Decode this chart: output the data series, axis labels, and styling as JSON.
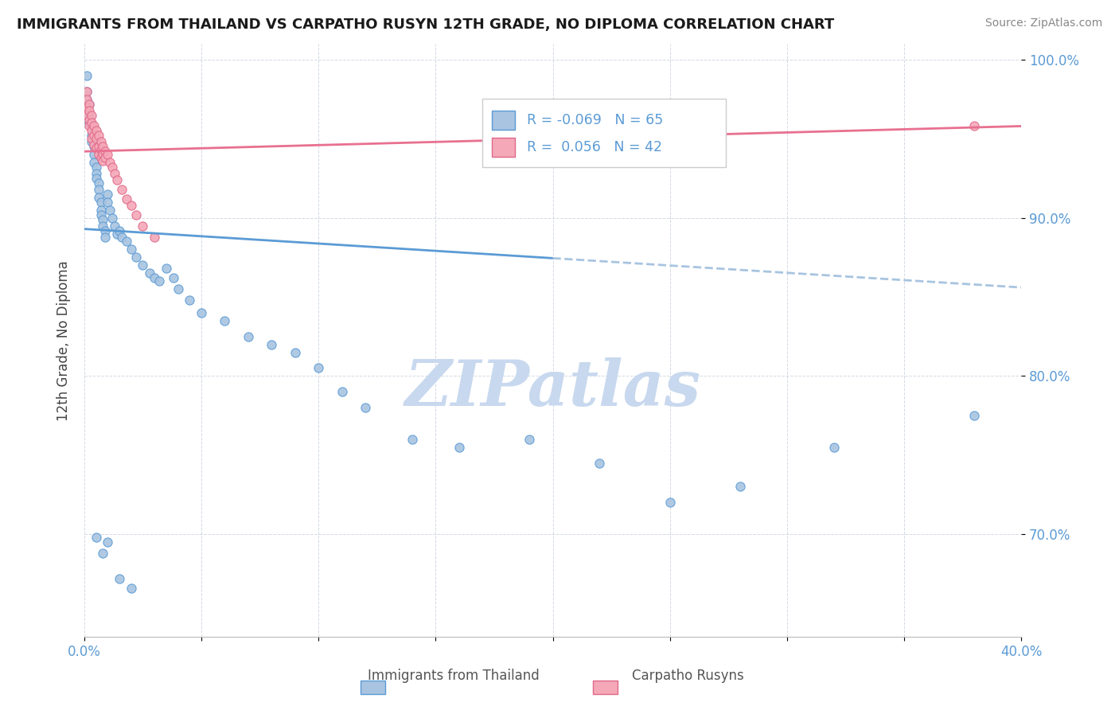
{
  "title": "IMMIGRANTS FROM THAILAND VS CARPATHO RUSYN 12TH GRADE, NO DIPLOMA CORRELATION CHART",
  "source": "Source: ZipAtlas.com",
  "ylabel": "12th Grade, No Diploma",
  "xlim": [
    0.0,
    0.4
  ],
  "ylim": [
    0.635,
    1.01
  ],
  "xtick_positions": [
    0.0,
    0.05,
    0.1,
    0.15,
    0.2,
    0.25,
    0.3,
    0.35,
    0.4
  ],
  "xticklabels": [
    "0.0%",
    "",
    "",
    "",
    "",
    "",
    "",
    "",
    "40.0%"
  ],
  "ytick_positions": [
    0.7,
    0.8,
    0.9,
    1.0
  ],
  "yticklabels": [
    "70.0%",
    "80.0%",
    "90.0%",
    "100.0%"
  ],
  "color_blue": "#a8c4e0",
  "color_pink": "#f4a8b8",
  "edge_blue": "#5b9bd5",
  "edge_pink": "#e06888",
  "trend_blue_solid": "#5b9bd5",
  "trend_blue_dash": "#a8c4e0",
  "trend_pink": "#e87090",
  "watermark": "ZIPatlas",
  "watermark_color": "#c8d8ee",
  "legend_label1": "Immigrants from Thailand",
  "legend_label2": "Carpatho Rusyns",
  "blue_x": [
    0.001,
    0.001,
    0.001,
    0.002,
    0.002,
    0.002,
    0.003,
    0.003,
    0.003,
    0.004,
    0.004,
    0.004,
    0.005,
    0.005,
    0.005,
    0.006,
    0.006,
    0.006,
    0.007,
    0.007,
    0.007,
    0.008,
    0.008,
    0.009,
    0.009,
    0.01,
    0.01,
    0.011,
    0.012,
    0.013,
    0.014,
    0.015,
    0.016,
    0.018,
    0.02,
    0.022,
    0.025,
    0.028,
    0.03,
    0.032,
    0.035,
    0.038,
    0.04,
    0.045,
    0.05,
    0.06,
    0.07,
    0.08,
    0.09,
    0.1,
    0.11,
    0.12,
    0.14,
    0.16,
    0.19,
    0.22,
    0.25,
    0.28,
    0.32,
    0.38,
    0.005,
    0.008,
    0.01,
    0.015,
    0.02
  ],
  "blue_y": [
    0.99,
    0.98,
    0.975,
    0.972,
    0.965,
    0.96,
    0.958,
    0.952,
    0.948,
    0.945,
    0.94,
    0.935,
    0.932,
    0.928,
    0.925,
    0.922,
    0.918,
    0.913,
    0.91,
    0.905,
    0.902,
    0.899,
    0.895,
    0.892,
    0.888,
    0.915,
    0.91,
    0.905,
    0.9,
    0.895,
    0.89,
    0.892,
    0.888,
    0.885,
    0.88,
    0.875,
    0.87,
    0.865,
    0.862,
    0.86,
    0.868,
    0.862,
    0.855,
    0.848,
    0.84,
    0.835,
    0.825,
    0.82,
    0.815,
    0.805,
    0.79,
    0.78,
    0.76,
    0.755,
    0.76,
    0.745,
    0.72,
    0.73,
    0.755,
    0.775,
    0.698,
    0.688,
    0.695,
    0.672,
    0.666
  ],
  "pink_x": [
    0.001,
    0.001,
    0.001,
    0.001,
    0.002,
    0.002,
    0.002,
    0.002,
    0.003,
    0.003,
    0.003,
    0.003,
    0.004,
    0.004,
    0.004,
    0.005,
    0.005,
    0.005,
    0.006,
    0.006,
    0.006,
    0.007,
    0.007,
    0.007,
    0.008,
    0.008,
    0.008,
    0.009,
    0.009,
    0.01,
    0.011,
    0.012,
    0.013,
    0.014,
    0.016,
    0.018,
    0.02,
    0.022,
    0.025,
    0.03,
    0.38,
    0.2
  ],
  "pink_y": [
    0.98,
    0.975,
    0.97,
    0.965,
    0.972,
    0.968,
    0.962,
    0.958,
    0.965,
    0.96,
    0.955,
    0.95,
    0.958,
    0.952,
    0.946,
    0.955,
    0.95,
    0.944,
    0.952,
    0.945,
    0.94,
    0.948,
    0.943,
    0.938,
    0.945,
    0.94,
    0.936,
    0.942,
    0.938,
    0.94,
    0.935,
    0.932,
    0.928,
    0.924,
    0.918,
    0.912,
    0.908,
    0.902,
    0.895,
    0.888,
    0.958,
    0.948
  ],
  "trend_blue_x0": 0.0,
  "trend_blue_y0": 0.893,
  "trend_blue_x1": 0.4,
  "trend_blue_y1": 0.856,
  "trend_blue_solid_end": 0.2,
  "trend_pink_x0": 0.0,
  "trend_pink_y0": 0.942,
  "trend_pink_x1": 0.4,
  "trend_pink_y1": 0.958
}
